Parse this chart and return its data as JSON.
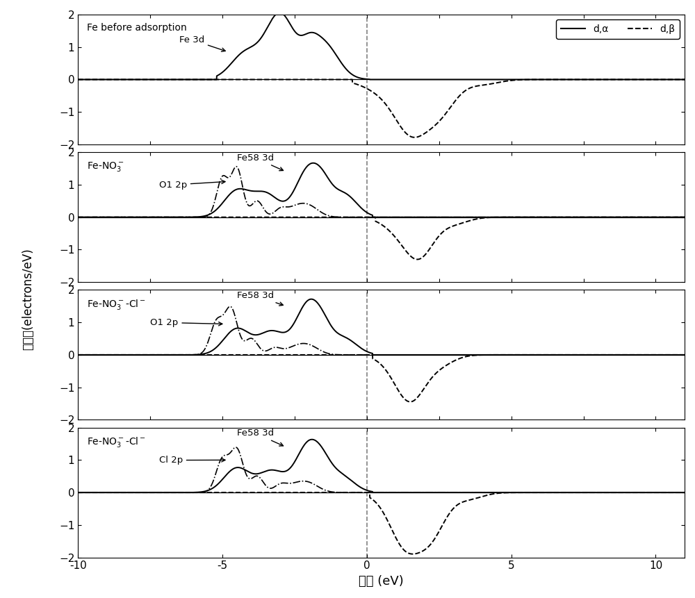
{
  "xlabel": "能量 (eV)",
  "ylabel": "态密度(electrons/eV)",
  "xlim": [
    -10,
    11
  ],
  "ylim_panel": [
    -2,
    2
  ],
  "yticks": [
    -2,
    -1,
    0,
    1,
    2
  ],
  "xticks": [
    -10,
    -5,
    0,
    5,
    10
  ],
  "line_color": "#000000",
  "background_color": "#ffffff",
  "legend_solid": "d,α",
  "legend_dashed": "d,β"
}
